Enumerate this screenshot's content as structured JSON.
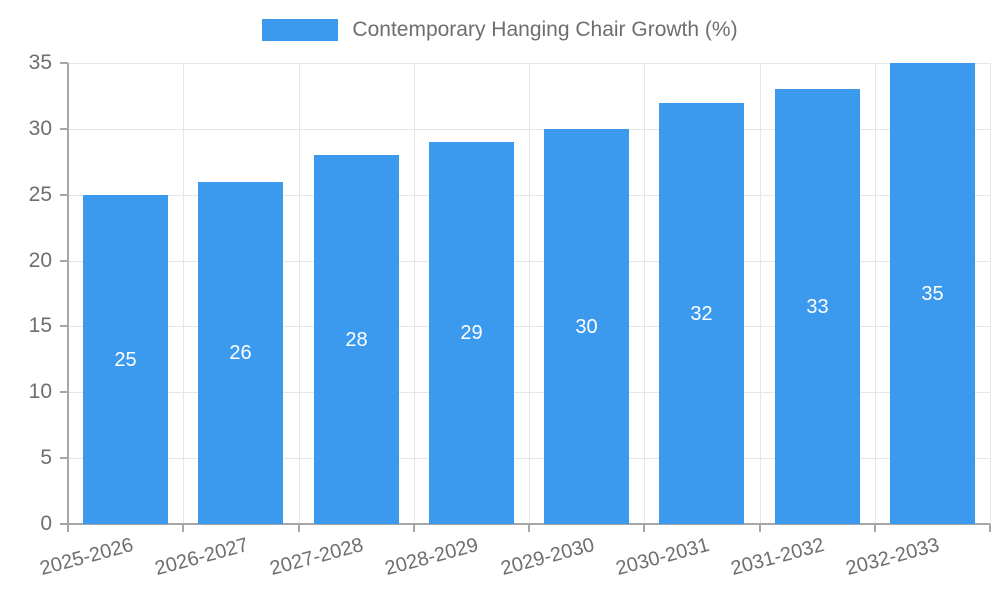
{
  "chart_data": {
    "type": "bar",
    "title": "Contemporary Hanging Chair Growth (%)",
    "categories": [
      "2025-2026",
      "2026-2027",
      "2027-2028",
      "2028-2029",
      "2029-2030",
      "2030-2031",
      "2031-2032",
      "2032-2033"
    ],
    "values": [
      25,
      26,
      28,
      29,
      30,
      32,
      33,
      35
    ],
    "value_labels": [
      "25",
      "26",
      "28",
      "29",
      "30",
      "32",
      "33",
      "35"
    ],
    "xlabel": "",
    "ylabel": "",
    "ylim": [
      0,
      35
    ],
    "yticks": [
      0,
      5,
      10,
      15,
      20,
      25,
      30,
      35
    ],
    "ytick_labels": [
      "0",
      "5",
      "10",
      "15",
      "20",
      "25",
      "30",
      "35"
    ],
    "grid": true,
    "legend_position": "top",
    "colors": {
      "bar": "#3b99ee",
      "value_label": "#ffffff",
      "grid": "#e6e6e6",
      "axis": "#a6a6a6",
      "tick_label": "#6e6e6e",
      "background": "#ffffff"
    }
  }
}
